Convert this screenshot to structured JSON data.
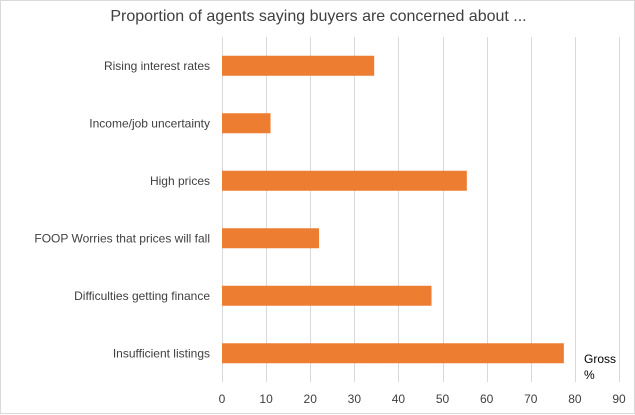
{
  "chart_data": {
    "type": "bar",
    "orientation": "horizontal",
    "title": "Proportion of agents saying buyers are concerned about ...",
    "categories": [
      "Rising interest rates",
      "Income/job uncertainty",
      "High prices",
      "FOOP Worries that prices will fall",
      "Difficulties getting finance",
      "Insufficient listings"
    ],
    "values": [
      34.5,
      11,
      55.5,
      22,
      47.5,
      77.5
    ],
    "xlim": [
      0,
      90
    ],
    "xticks": [
      0,
      10,
      20,
      30,
      40,
      50,
      60,
      70,
      80,
      90
    ],
    "unit_label_line1": "Gross",
    "unit_label_line2": "%",
    "grid": true,
    "bar_color": "#ed7d31",
    "grid_color": "#d9d9d9"
  }
}
